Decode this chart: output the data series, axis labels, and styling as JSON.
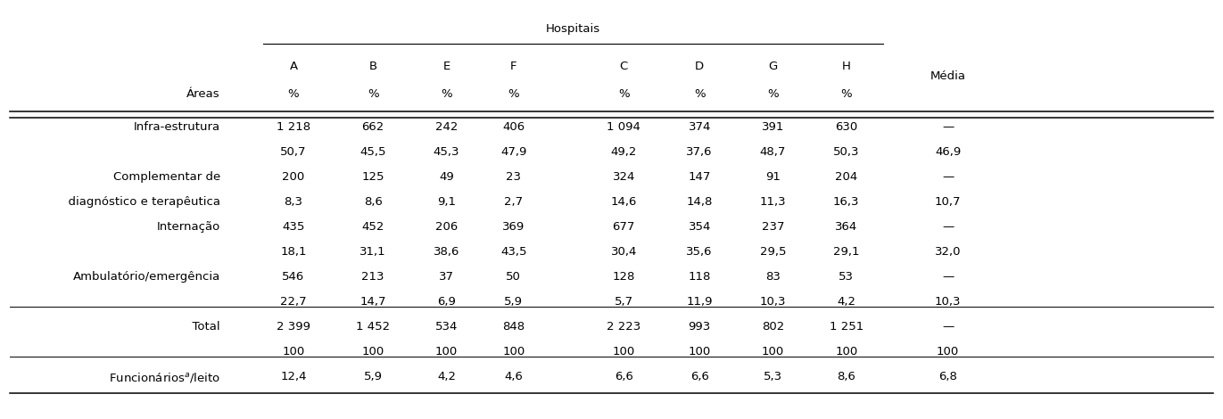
{
  "title_hospitais": "Hospitais",
  "col_letters": [
    "A",
    "B",
    "E",
    "F",
    "C",
    "D",
    "G",
    "H"
  ],
  "row_label_col": "Áreas",
  "media_label": "Média",
  "rows": [
    {
      "label": "Infra-estrutura",
      "label2": null,
      "vals": [
        "1 218",
        "662",
        "242",
        "406",
        "1 094",
        "374",
        "391",
        "630",
        "—"
      ],
      "vals2": [
        "50,7",
        "45,5",
        "45,3",
        "47,9",
        "49,2",
        "37,6",
        "48,7",
        "50,3",
        "46,9"
      ]
    },
    {
      "label": "Complementar de",
      "label2": "  diagnóstico e terapêutica",
      "vals": [
        "200",
        "125",
        "49",
        "23",
        "324",
        "147",
        "91",
        "204",
        "—"
      ],
      "vals2": [
        "8,3",
        "8,6",
        "9,1",
        "2,7",
        "14,6",
        "14,8",
        "11,3",
        "16,3",
        "10,7"
      ]
    },
    {
      "label": "Internação",
      "label2": null,
      "vals": [
        "435",
        "452",
        "206",
        "369",
        "677",
        "354",
        "237",
        "364",
        "—"
      ],
      "vals2": [
        "18,1",
        "31,1",
        "38,6",
        "43,5",
        "30,4",
        "35,6",
        "29,5",
        "29,1",
        "32,0"
      ]
    },
    {
      "label": "Ambulatório/emergência",
      "label2": null,
      "vals": [
        "546",
        "213",
        "37",
        "50",
        "128",
        "118",
        "83",
        "53",
        "—"
      ],
      "vals2": [
        "22,7",
        "14,7",
        "6,9",
        "5,9",
        "5,7",
        "11,9",
        "10,3",
        "4,2",
        "10,3"
      ]
    },
    {
      "label": "  Total",
      "label2": null,
      "vals": [
        "2 399",
        "1 452",
        "534",
        "848",
        "2 223",
        "993",
        "802",
        "1 251",
        "—"
      ],
      "vals2": [
        "100",
        "100",
        "100",
        "100",
        "100",
        "100",
        "100",
        "100",
        "100"
      ]
    },
    {
      "label": "Funcionários$^a$/leito",
      "label2": null,
      "vals": [
        "12,4",
        "5,9",
        "4,2",
        "4,6",
        "6,6",
        "6,6",
        "5,3",
        "8,6",
        "6,8"
      ],
      "vals2": null
    }
  ],
  "bg_color": "#ffffff",
  "text_color": "#000000",
  "font_size": 9.5
}
